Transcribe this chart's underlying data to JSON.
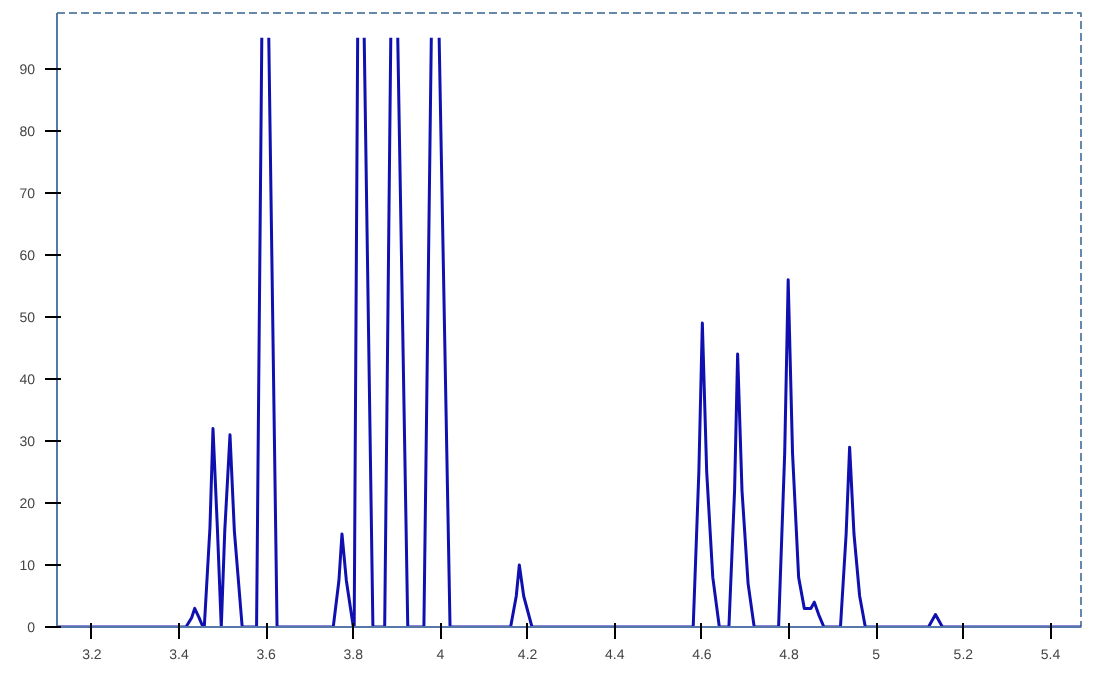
{
  "chart_data": {
    "type": "line",
    "xlim": [
      3.12,
      5.47
    ],
    "ylim": [
      0,
      99
    ],
    "xticks": [
      3.2,
      3.4,
      3.6,
      3.8,
      4,
      4.2,
      4.4,
      4.6,
      4.8,
      5,
      5.2,
      5.4
    ],
    "yticks": [
      0,
      10,
      20,
      30,
      40,
      50,
      60,
      70,
      80,
      90
    ],
    "grid": false,
    "marker": "none",
    "line_style": "solid",
    "series": [
      {
        "color": "#1010b0",
        "x": [
          3.12,
          3.416,
          3.429,
          3.436,
          3.446,
          3.455,
          3.458,
          3.471,
          3.478,
          3.488,
          3.497,
          3.505,
          3.517,
          3.527,
          3.545,
          3.578,
          3.59,
          3.598,
          3.606,
          3.625,
          3.754,
          3.767,
          3.774,
          3.784,
          3.8,
          3.802,
          3.81,
          3.817,
          3.825,
          3.845,
          3.872,
          3.886,
          3.894,
          3.902,
          3.925,
          3.962,
          3.979,
          3.988,
          3.997,
          4.022,
          4.161,
          4.174,
          4.181,
          4.191,
          4.21,
          4.58,
          4.593,
          4.601,
          4.611,
          4.625,
          4.64,
          4.662,
          4.675,
          4.682,
          4.692,
          4.706,
          4.72,
          4.776,
          4.79,
          4.798,
          4.808,
          4.822,
          4.835,
          4.85,
          4.858,
          4.868,
          4.88,
          4.918,
          4.931,
          4.939,
          4.949,
          4.962,
          4.975,
          5.12,
          5.136,
          5.152,
          5.47
        ],
        "values": [
          0,
          0,
          1.5,
          3,
          1.5,
          0,
          0,
          16,
          32,
          16,
          0,
          15.5,
          31,
          15.5,
          0,
          0,
          95,
          null,
          95,
          0,
          0,
          7.5,
          15,
          7.5,
          0,
          0,
          95,
          null,
          95,
          0,
          0,
          95,
          null,
          95,
          0,
          0,
          95,
          null,
          95,
          0,
          0,
          5,
          10,
          5,
          0,
          0,
          25,
          49,
          25,
          8,
          0,
          0,
          22,
          44,
          22,
          7,
          0,
          0,
          28,
          56,
          28,
          8,
          3,
          3,
          4,
          2,
          0,
          0,
          15,
          29,
          15,
          5,
          0,
          0,
          2,
          0,
          0
        ]
      }
    ]
  }
}
